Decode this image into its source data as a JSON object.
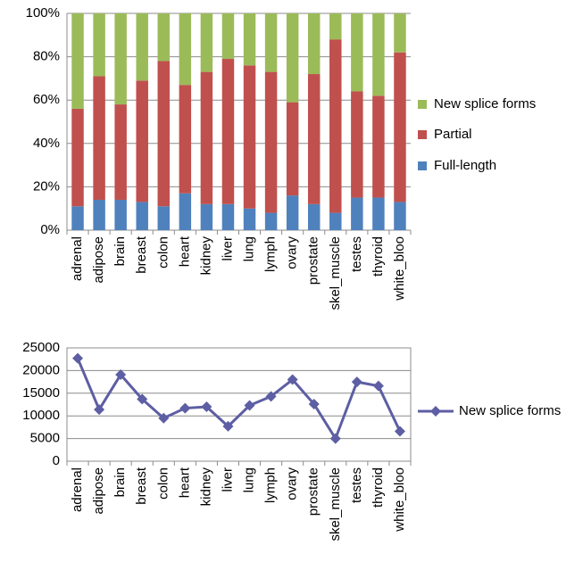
{
  "chart_data": [
    {
      "type": "bar",
      "stacked": true,
      "categories": [
        "adrenal",
        "adipose",
        "brain",
        "breast",
        "colon",
        "heart",
        "kidney",
        "liver",
        "lung",
        "lymph",
        "ovary",
        "prostate",
        "skel_muscle",
        "testes",
        "thyroid",
        "white_bloo"
      ],
      "series": [
        {
          "name": "Full-length",
          "color": "#4f81bd",
          "values": [
            11,
            14,
            14,
            13,
            11,
            17,
            12,
            12,
            10,
            8,
            16,
            12,
            8,
            15,
            15,
            13
          ]
        },
        {
          "name": "Partial",
          "color": "#c0504d",
          "values": [
            45,
            57,
            44,
            56,
            67,
            50,
            61,
            67,
            66,
            65,
            43,
            60,
            80,
            49,
            47,
            69
          ]
        },
        {
          "name": "New splice forms",
          "color": "#9bbb59",
          "values": [
            44,
            29,
            42,
            31,
            22,
            33,
            27,
            21,
            24,
            27,
            41,
            28,
            12,
            36,
            38,
            18
          ]
        }
      ],
      "ylim": [
        0,
        100
      ],
      "yticks": [
        {
          "value": 0,
          "label": "0%"
        },
        {
          "value": 20,
          "label": "20%"
        },
        {
          "value": 40,
          "label": "40%"
        },
        {
          "value": 60,
          "label": "60%"
        },
        {
          "value": 80,
          "label": "80%"
        },
        {
          "value": 100,
          "label": "100%"
        }
      ],
      "grid": true,
      "legend": "right"
    },
    {
      "type": "line",
      "categories": [
        "adrenal",
        "adipose",
        "brain",
        "breast",
        "colon",
        "heart",
        "kidney",
        "liver",
        "lung",
        "lymph",
        "ovary",
        "prostate",
        "skel_muscle",
        "testes",
        "thyroid",
        "white_bloo"
      ],
      "series": [
        {
          "name": "New splice forms",
          "color": "#5d5ea3",
          "values": [
            22700,
            11400,
            19100,
            13700,
            9500,
            11700,
            12000,
            7700,
            12300,
            14300,
            18000,
            12600,
            5000,
            17500,
            16600,
            6600
          ]
        }
      ],
      "ylim": [
        0,
        25000
      ],
      "yticks": [
        0,
        5000,
        10000,
        15000,
        20000,
        25000
      ],
      "grid": true,
      "legend": "right"
    }
  ]
}
